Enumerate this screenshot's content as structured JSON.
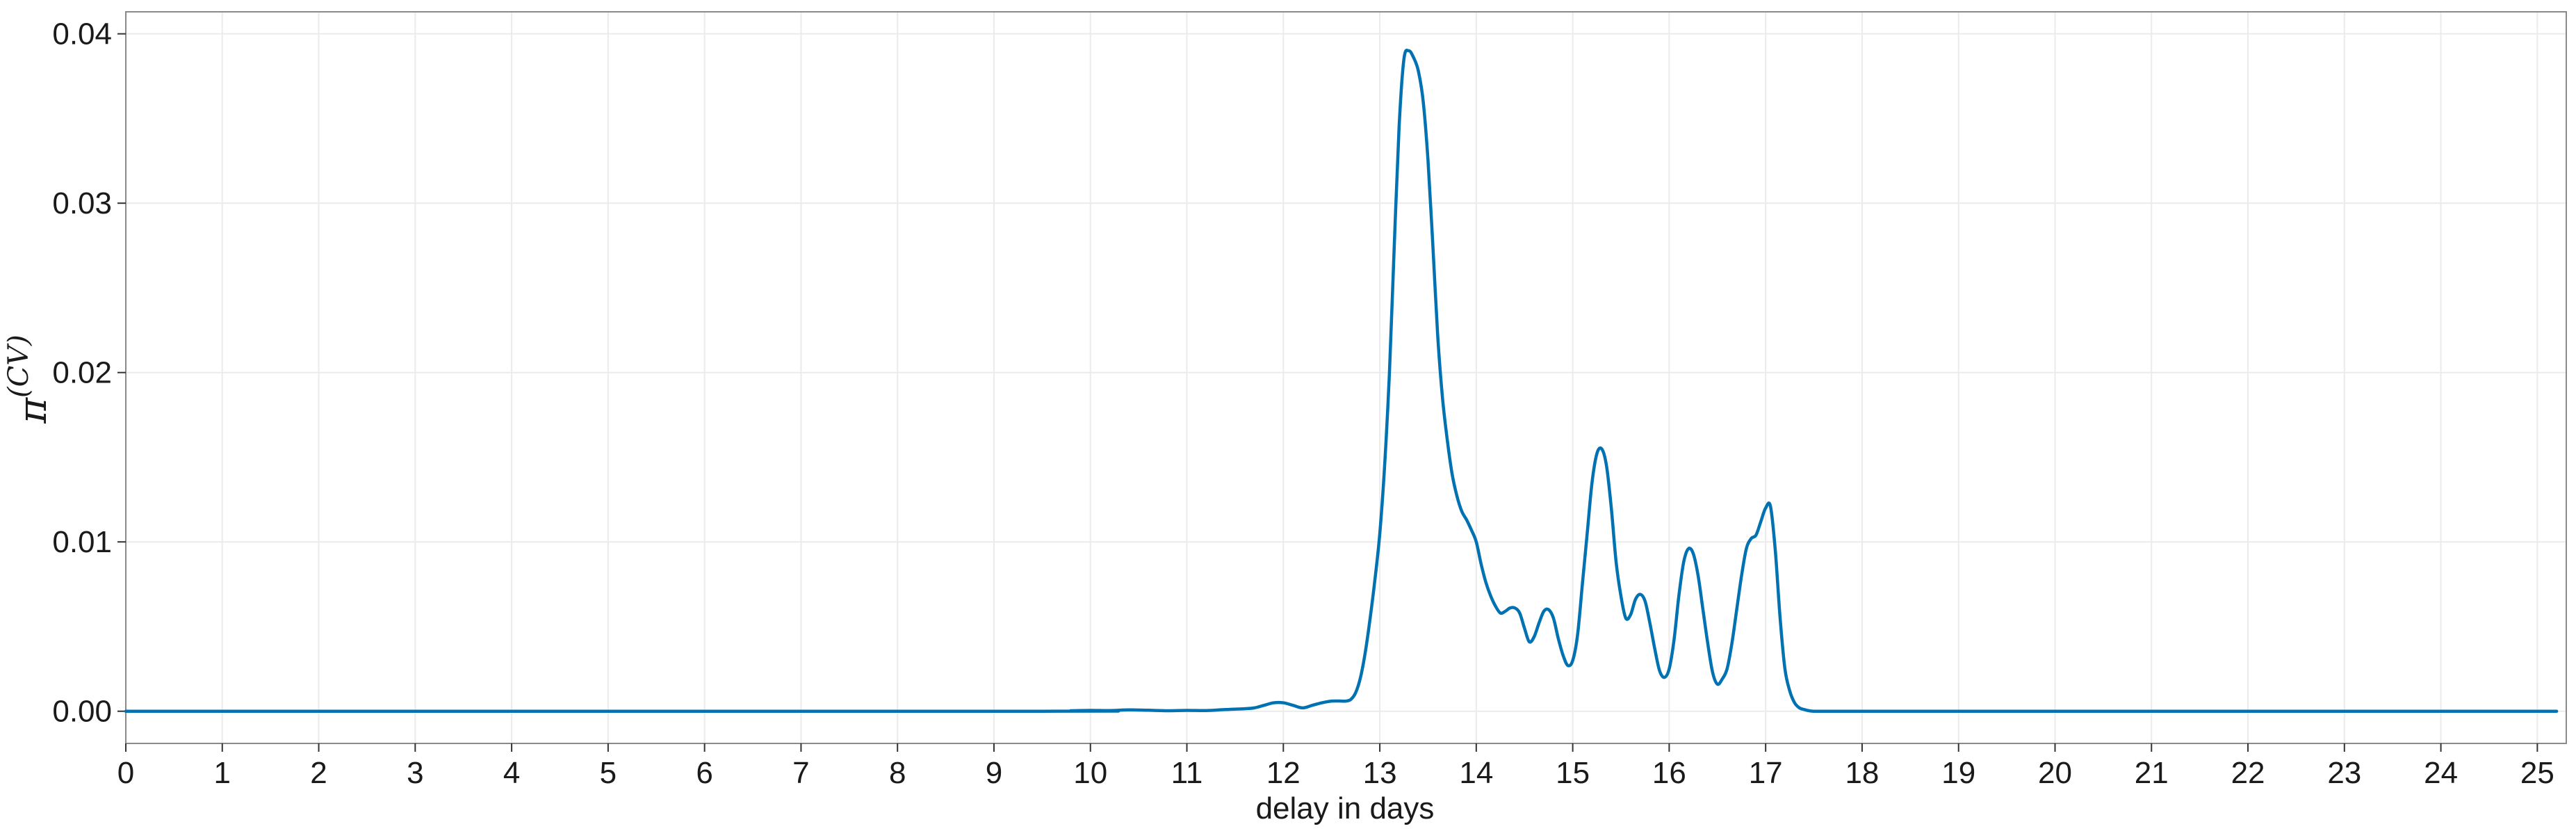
{
  "chart_data": {
    "type": "line",
    "title": "",
    "xlabel": "delay in days",
    "ylabel": {
      "base": "π",
      "superscript": "(CV)"
    },
    "xlim": [
      0,
      25.3
    ],
    "ylim": [
      -0.0019,
      0.0413
    ],
    "xticks": [
      0,
      1,
      2,
      3,
      4,
      5,
      6,
      7,
      8,
      9,
      10,
      11,
      12,
      13,
      14,
      15,
      16,
      17,
      18,
      19,
      20,
      21,
      22,
      23,
      24,
      25
    ],
    "xtick_labels": [
      "0",
      "1",
      "2",
      "3",
      "4",
      "5",
      "6",
      "7",
      "8",
      "9",
      "10",
      "11",
      "12",
      "13",
      "14",
      "15",
      "16",
      "17",
      "18",
      "19",
      "20",
      "21",
      "22",
      "23",
      "24",
      "25"
    ],
    "yticks": [
      0,
      0.01,
      0.02,
      0.03,
      0.04
    ],
    "ytick_labels": [
      "0.00",
      "0.01",
      "0.02",
      "0.03",
      "0.04"
    ],
    "grid": true,
    "legend": "none",
    "line_color": "#0072b2",
    "series": [
      {
        "x": [
          0,
          9.5,
          9.8,
          10.0,
          10.2,
          10.4,
          10.6,
          10.8,
          11.0,
          11.2,
          11.4,
          11.6,
          11.7,
          11.8,
          11.9,
          12.0,
          12.1,
          12.2,
          12.3,
          12.4,
          12.5,
          12.6,
          12.65,
          12.7,
          12.75,
          12.8,
          12.85,
          12.9,
          12.95,
          13.0,
          13.05,
          13.1,
          13.15,
          13.2,
          13.25,
          13.3,
          13.35,
          13.4,
          13.45,
          13.5,
          13.55,
          13.6,
          13.65,
          13.7,
          13.75,
          13.8,
          13.85,
          13.9,
          13.95,
          14.0,
          14.05,
          14.1,
          14.15,
          14.2,
          14.25,
          14.3,
          14.35,
          14.4,
          14.45,
          14.5,
          14.55,
          14.6,
          14.65,
          14.7,
          14.75,
          14.8,
          14.85,
          14.9,
          14.95,
          15.0,
          15.05,
          15.1,
          15.15,
          15.2,
          15.25,
          15.3,
          15.35,
          15.4,
          15.45,
          15.5,
          15.55,
          15.6,
          15.65,
          15.7,
          15.75,
          15.8,
          15.85,
          15.9,
          15.95,
          16.0,
          16.05,
          16.1,
          16.15,
          16.2,
          16.25,
          16.3,
          16.35,
          16.4,
          16.45,
          16.5,
          16.55,
          16.6,
          16.65,
          16.7,
          16.75,
          16.8,
          16.85,
          16.9,
          16.95,
          17.0,
          17.05,
          17.1,
          17.15,
          17.2,
          17.25,
          17.3,
          17.35,
          17.4,
          17.45,
          17.5,
          17.6,
          17.8,
          18.0,
          20.0,
          25.2
        ],
        "y": [
          0,
          0,
          3e-05,
          5e-05,
          4e-05,
          8e-05,
          6e-05,
          3e-05,
          5e-05,
          4e-05,
          0.0001,
          0.00015,
          0.0002,
          0.00035,
          0.0005,
          0.0005,
          0.00035,
          0.0002,
          0.00035,
          0.0005,
          0.0006,
          0.0006,
          0.0006,
          0.0007,
          0.0011,
          0.002,
          0.0035,
          0.0055,
          0.0078,
          0.0105,
          0.0145,
          0.02,
          0.0275,
          0.0345,
          0.0385,
          0.039,
          0.0386,
          0.0378,
          0.036,
          0.0325,
          0.0275,
          0.0222,
          0.0185,
          0.016,
          0.014,
          0.0127,
          0.0118,
          0.0113,
          0.0107,
          0.01,
          0.0087,
          0.0076,
          0.0068,
          0.0062,
          0.0058,
          0.0059,
          0.0061,
          0.0061,
          0.0058,
          0.0049,
          0.0041,
          0.0044,
          0.0052,
          0.0059,
          0.006,
          0.0055,
          0.0043,
          0.0033,
          0.0027,
          0.003,
          0.0045,
          0.0075,
          0.0105,
          0.0135,
          0.0152,
          0.0155,
          0.0145,
          0.012,
          0.0088,
          0.0068,
          0.0055,
          0.0057,
          0.0066,
          0.0069,
          0.0065,
          0.0052,
          0.0037,
          0.0024,
          0.002,
          0.0025,
          0.0042,
          0.0068,
          0.0088,
          0.0096,
          0.0093,
          0.008,
          0.006,
          0.004,
          0.0023,
          0.0016,
          0.0019,
          0.0025,
          0.004,
          0.006,
          0.008,
          0.0096,
          0.0102,
          0.0104,
          0.0112,
          0.012,
          0.0121,
          0.0095,
          0.0055,
          0.0025,
          0.0012,
          0.0005,
          0.0002,
          0.0001,
          3e-05,
          0,
          0,
          0,
          0,
          0,
          0
        ]
      }
    ]
  }
}
